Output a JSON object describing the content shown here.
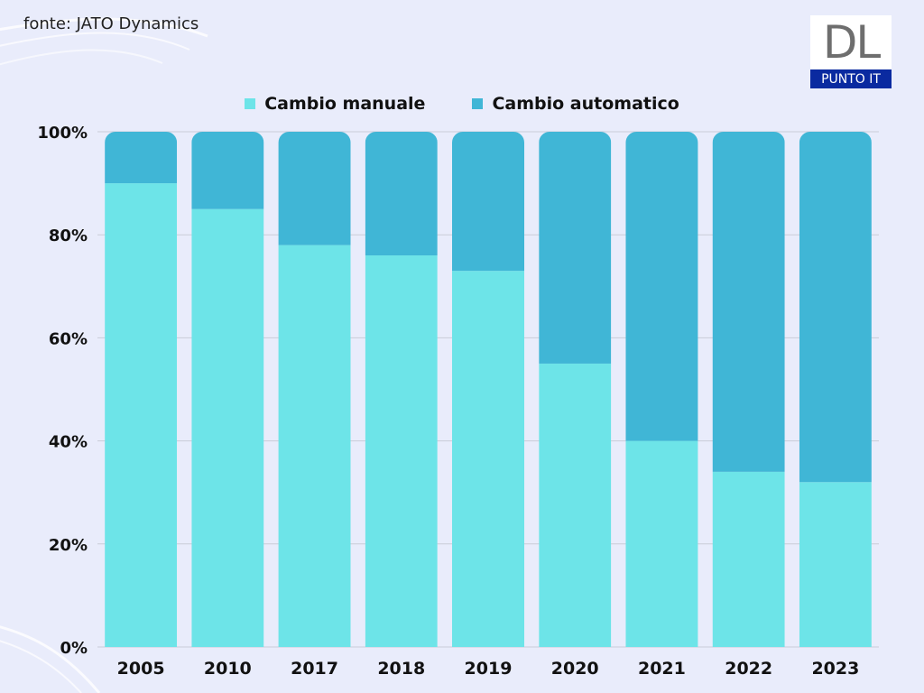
{
  "source": "fonte: JATO Dynamics",
  "logo": {
    "letters": "DL",
    "tagline": "PUNTO IT"
  },
  "colors": {
    "manual": "#6de4e8",
    "automatic": "#40b6d6",
    "background": "#e9ecfb",
    "grid": "#c9ccd8"
  },
  "chart_data": {
    "type": "bar",
    "stacked": true,
    "categories": [
      "2005",
      "2010",
      "2017",
      "2018",
      "2019",
      "2020",
      "2021",
      "2022",
      "2023"
    ],
    "series": [
      {
        "name": "Cambio manuale",
        "values": [
          90,
          85,
          78,
          76,
          73,
          55,
          40,
          34,
          32
        ]
      },
      {
        "name": "Cambio automatico",
        "values": [
          10,
          15,
          22,
          24,
          27,
          45,
          60,
          66,
          68
        ]
      }
    ],
    "y_ticks": [
      "0%",
      "20%",
      "40%",
      "60%",
      "80%",
      "100%"
    ],
    "ylim": [
      0,
      100
    ],
    "grid": true,
    "legend_position": "top-center"
  }
}
